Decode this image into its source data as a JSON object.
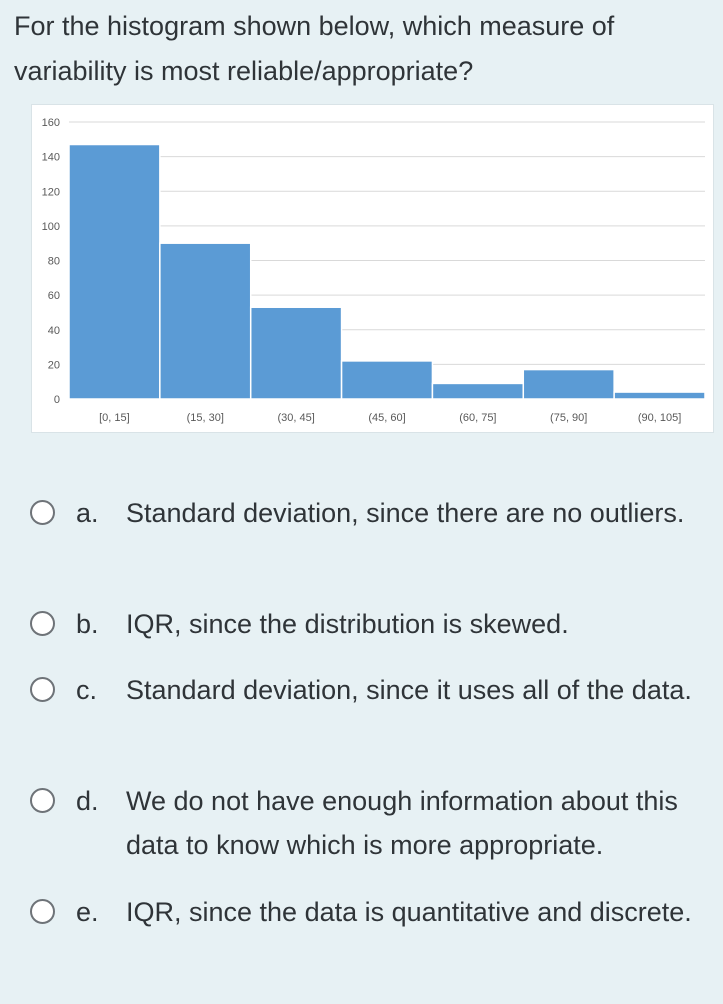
{
  "question": "For the histogram shown below, which measure of variability is most reliable/appropriate?",
  "chart_data": {
    "type": "bar",
    "categories": [
      "[0, 15]",
      "(15, 30]",
      "(30, 45]",
      "(45, 60]",
      "(60, 75]",
      "(75, 90]",
      "(90, 105]"
    ],
    "values": [
      147,
      90,
      53,
      22,
      9,
      17,
      4
    ],
    "title": "",
    "xlabel": "",
    "ylabel": "",
    "ylim": [
      0,
      160
    ],
    "yticks": [
      "0",
      "20",
      "40",
      "60",
      "80",
      "100",
      "120",
      "140",
      "160"
    ],
    "grid": true,
    "bar_color": "#5b9bd5"
  },
  "options": [
    {
      "letter": "a.",
      "text": "Standard deviation, since there are no outliers."
    },
    {
      "letter": "b.",
      "text": "IQR, since the distribution is skewed."
    },
    {
      "letter": "c.",
      "text": "Standard deviation, since it uses all of the data."
    },
    {
      "letter": "d.",
      "text": "We do not have enough information about this data to know which is more appropriate."
    },
    {
      "letter": "e.",
      "text": "IQR, since the data is quantitative and discrete."
    }
  ]
}
